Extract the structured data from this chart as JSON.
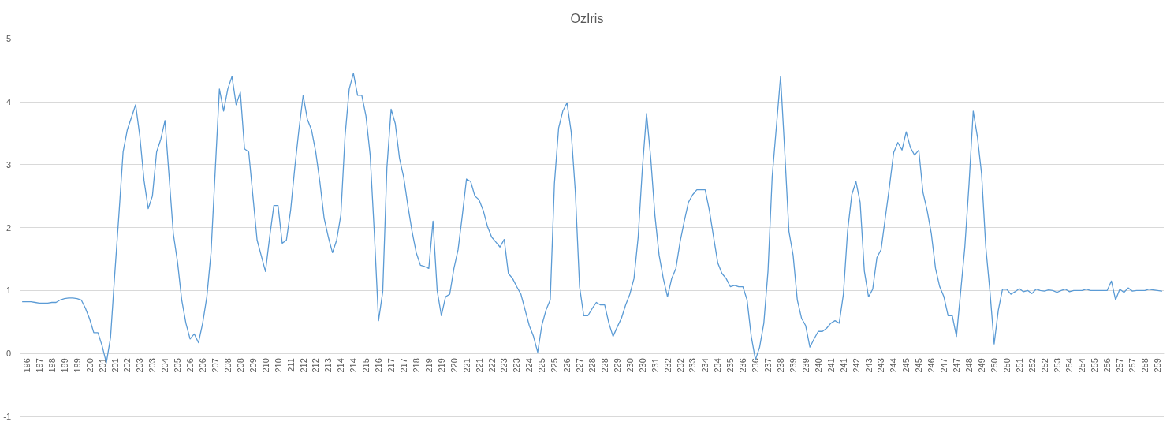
{
  "chart_data": {
    "type": "line",
    "title": "OzIris",
    "categories": [
      null,
      "196",
      null,
      null,
      "197",
      null,
      null,
      "198",
      null,
      null,
      "199",
      null,
      null,
      "199",
      null,
      null,
      "200",
      null,
      null,
      "201",
      null,
      null,
      "201",
      null,
      null,
      "202",
      null,
      null,
      "203",
      null,
      null,
      "203",
      null,
      null,
      "204",
      null,
      null,
      "205",
      null,
      null,
      "206",
      null,
      null,
      "206",
      null,
      null,
      "207",
      null,
      null,
      "208",
      null,
      null,
      "208",
      null,
      null,
      "209",
      null,
      null,
      "210",
      null,
      null,
      "210",
      null,
      null,
      "211",
      null,
      null,
      "212",
      null,
      null,
      "212",
      null,
      null,
      "213",
      null,
      null,
      "214",
      null,
      null,
      "214",
      null,
      null,
      "215",
      null,
      null,
      "216",
      null,
      null,
      "217",
      null,
      null,
      "217",
      null,
      null,
      "218",
      null,
      null,
      "219",
      null,
      null,
      "219",
      null,
      null,
      "220",
      null,
      null,
      "221",
      null,
      null,
      "221",
      null,
      null,
      "222",
      null,
      null,
      "223",
      null,
      null,
      "223",
      null,
      null,
      "224",
      null,
      null,
      "225",
      null,
      null,
      "225",
      null,
      null,
      "226",
      null,
      null,
      "227",
      null,
      null,
      "228",
      null,
      null,
      "228",
      null,
      null,
      "229",
      null,
      null,
      "230",
      null,
      null,
      "230",
      null,
      null,
      "231",
      null,
      null,
      "232",
      null,
      null,
      "232",
      null,
      null,
      "233",
      null,
      null,
      "234",
      null,
      null,
      "234",
      null,
      null,
      "235",
      null,
      null,
      "236",
      null,
      null,
      "236",
      null,
      null,
      "237",
      null,
      null,
      "238",
      null,
      null,
      "239",
      null,
      null,
      "239",
      null,
      null,
      "240",
      null,
      null,
      "241",
      null,
      null,
      "241",
      null,
      null,
      "242",
      null,
      null,
      "243",
      null,
      null,
      "243",
      null,
      null,
      "244",
      null,
      null,
      "245",
      null,
      null,
      "245",
      null,
      null,
      "246",
      null,
      null,
      "247",
      null,
      null,
      "247",
      null,
      null,
      "248",
      null,
      null,
      "249",
      null,
      null,
      "250",
      null,
      null,
      "250",
      null,
      null,
      "251",
      null,
      null,
      "252",
      null,
      null,
      "252",
      null,
      null,
      "253",
      null,
      null,
      "254",
      null,
      null,
      "254",
      null,
      null,
      "255",
      null,
      null,
      "256",
      null,
      null,
      "257",
      null,
      null,
      "257",
      null,
      null,
      "258",
      null,
      null,
      "259",
      null
    ],
    "values": [
      0.82,
      0.82,
      0.82,
      0.81,
      0.8,
      0.8,
      0.8,
      0.81,
      0.81,
      0.85,
      0.87,
      0.88,
      0.88,
      0.87,
      0.85,
      0.72,
      0.55,
      0.33,
      0.33,
      0.12,
      -0.15,
      0.25,
      1.25,
      2.2,
      3.2,
      3.55,
      3.75,
      3.95,
      3.45,
      2.75,
      2.3,
      2.5,
      3.2,
      3.4,
      3.7,
      2.8,
      1.9,
      1.45,
      0.85,
      0.48,
      0.23,
      0.31,
      0.17,
      0.48,
      0.9,
      1.6,
      2.9,
      4.2,
      3.85,
      4.2,
      4.4,
      3.95,
      4.15,
      3.25,
      3.2,
      2.5,
      1.8,
      1.55,
      1.3,
      1.85,
      2.35,
      2.35,
      1.75,
      1.8,
      2.27,
      2.95,
      3.56,
      4.1,
      3.72,
      3.55,
      3.2,
      2.72,
      2.15,
      1.85,
      1.6,
      1.8,
      2.2,
      3.45,
      4.2,
      4.45,
      4.1,
      4.1,
      3.77,
      3.15,
      1.9,
      0.52,
      0.98,
      2.95,
      3.88,
      3.65,
      3.1,
      2.8,
      2.35,
      1.94,
      1.6,
      1.4,
      1.38,
      1.35,
      2.1,
      1.0,
      0.6,
      0.9,
      0.94,
      1.35,
      1.65,
      2.19,
      2.77,
      2.73,
      2.5,
      2.44,
      2.27,
      2.02,
      1.85,
      1.77,
      1.69,
      1.81,
      1.27,
      1.19,
      1.06,
      0.94,
      0.69,
      0.44,
      0.27,
      0.02,
      0.45,
      0.69,
      0.85,
      2.7,
      3.58,
      3.85,
      3.98,
      3.52,
      2.56,
      1.06,
      0.6,
      0.6,
      0.71,
      0.81,
      0.77,
      0.77,
      0.48,
      0.27,
      0.42,
      0.56,
      0.77,
      0.94,
      1.19,
      1.85,
      2.94,
      3.81,
      3.1,
      2.19,
      1.56,
      1.19,
      0.9,
      1.19,
      1.35,
      1.77,
      2.1,
      2.4,
      2.52,
      2.6,
      2.6,
      2.6,
      2.27,
      1.85,
      1.44,
      1.27,
      1.19,
      1.06,
      1.08,
      1.06,
      1.06,
      0.85,
      0.27,
      -0.1,
      0.1,
      0.48,
      1.31,
      2.81,
      3.6,
      4.4,
      3.2,
      1.94,
      1.56,
      0.85,
      0.56,
      0.44,
      0.1,
      0.23,
      0.35,
      0.35,
      0.4,
      0.48,
      0.52,
      0.48,
      0.94,
      1.94,
      2.52,
      2.73,
      2.4,
      1.31,
      0.9,
      1.02,
      1.52,
      1.65,
      2.15,
      2.65,
      3.19,
      3.35,
      3.23,
      3.52,
      3.27,
      3.15,
      3.23,
      2.56,
      2.27,
      1.9,
      1.35,
      1.06,
      0.9,
      0.6,
      0.6,
      0.27,
      0.98,
      1.69,
      2.69,
      3.85,
      3.44,
      2.85,
      1.69,
      0.98,
      0.15,
      0.69,
      1.02,
      1.02,
      0.94,
      0.98,
      1.03,
      0.98,
      1,
      0.95,
      1.02,
      1,
      0.99,
      1.01,
      1,
      0.97,
      1,
      1.02,
      0.98,
      1,
      1,
      1,
      1.02,
      1,
      1,
      1,
      1,
      1,
      1.15,
      0.85,
      1.02,
      0.97,
      1.04,
      0.99,
      1,
      1,
      1,
      1.02,
      1.01,
      1,
      0.99
    ],
    "color": "#5b9bd5",
    "ylim": [
      -1,
      5
    ],
    "yticks": [
      -1,
      0,
      1,
      2,
      3,
      4,
      5
    ],
    "grid": "y",
    "marker": "none",
    "line_style": "solid"
  }
}
